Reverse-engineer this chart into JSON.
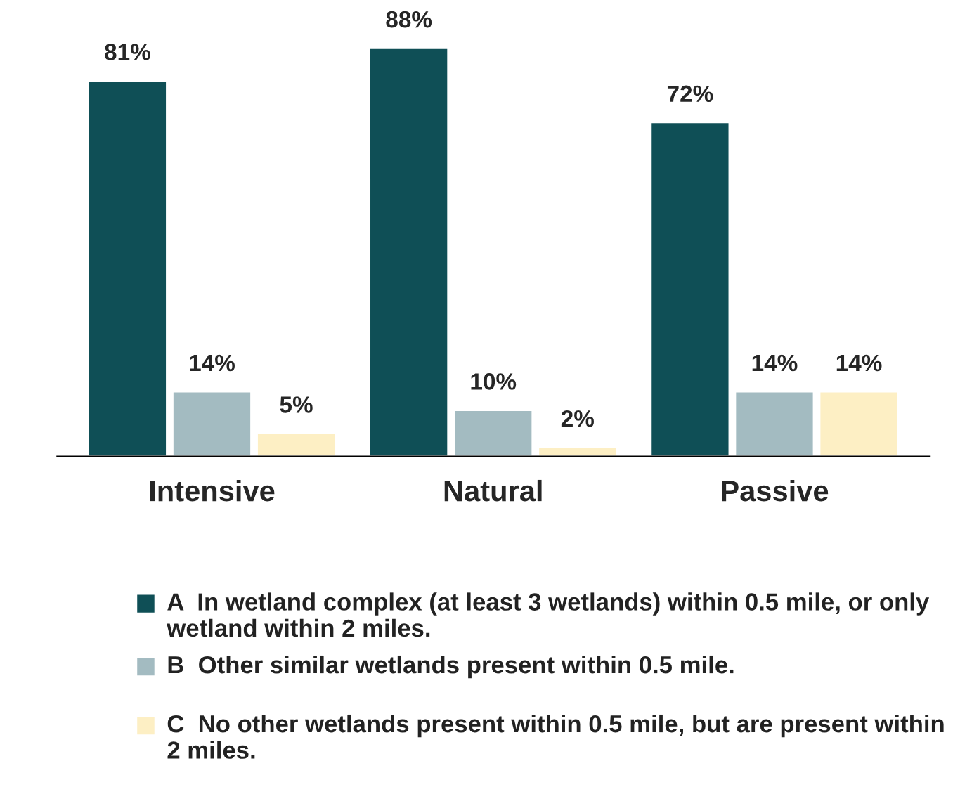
{
  "chart_data": {
    "type": "bar",
    "categories": [
      "Intensive",
      "Natural",
      "Passive"
    ],
    "series": [
      {
        "name": "A  In wetland complex (at least 3 wetlands) within 0.5 mile, or only wetland within 2 miles.",
        "color": "#0f4f56",
        "values": [
          81,
          88,
          72
        ],
        "value_labels": [
          "81%",
          "88%",
          "72%"
        ]
      },
      {
        "name": "B  Other similar wetlands present within 0.5 mile.",
        "color": "#a3bbc1",
        "values": [
          14,
          10,
          14
        ],
        "value_labels": [
          "14%",
          "10%",
          "14%"
        ]
      },
      {
        "name": "C  No other wetlands present within 0.5 mile, but are present within 2 miles.",
        "color": "#fdefc4",
        "values": [
          5,
          2,
          14
        ],
        "value_labels": [
          "5%",
          "2%",
          "14%"
        ]
      }
    ],
    "legend": "bottom",
    "grid": false
  }
}
